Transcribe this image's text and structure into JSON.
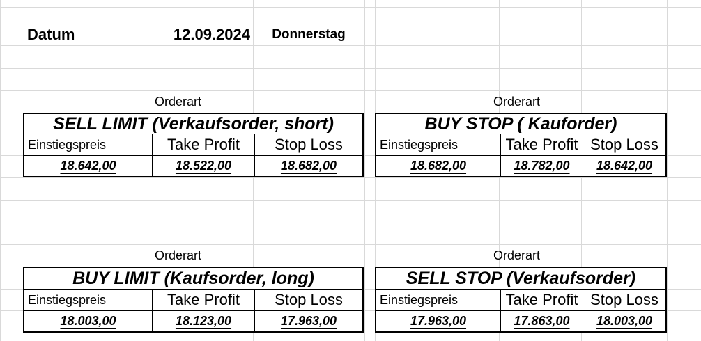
{
  "colors": {
    "background": "#ffffff",
    "gridline": "#d9d9d9",
    "table_border": "#000000",
    "text": "#000000"
  },
  "date_row": {
    "label": "Datum",
    "date": "12.09.2024",
    "weekday": "Donnerstag"
  },
  "orderart_label": "Orderart",
  "tables": [
    {
      "name": "sell-limit",
      "title": "SELL LIMIT (Verkaufsorder, short)",
      "headers": [
        "Einstiegspreis",
        "Take Profit",
        "Stop Loss"
      ],
      "values": [
        "18.642,00",
        "18.522,00",
        "18.682,00"
      ]
    },
    {
      "name": "buy-stop",
      "title": "BUY STOP ( Kauforder)",
      "headers": [
        "Einstiegspreis",
        "Take Profit",
        "Stop Loss"
      ],
      "values": [
        "18.682,00",
        "18.782,00",
        "18.642,00"
      ]
    },
    {
      "name": "buy-limit",
      "title": "BUY LIMIT (Kaufsorder, long)",
      "headers": [
        "Einstiegspreis",
        "Take Profit",
        "Stop Loss"
      ],
      "values": [
        "18.003,00",
        "18.123,00",
        "17.963,00"
      ]
    },
    {
      "name": "sell-stop",
      "title": "SELL STOP (Verkaufsorder)",
      "headers": [
        "Einstiegspreis",
        "Take Profit",
        "Stop Loss"
      ],
      "values": [
        "17.963,00",
        "17.863,00",
        "18.003,00"
      ]
    }
  ]
}
